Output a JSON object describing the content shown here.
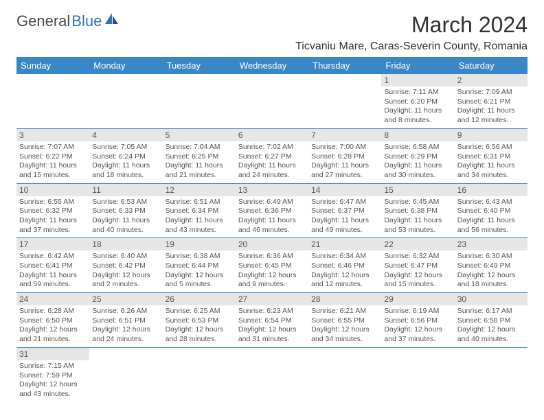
{
  "logo": {
    "part1": "General",
    "part2": "Blue"
  },
  "title": "March 2024",
  "location": "Ticvaniu Mare, Caras-Severin County, Romania",
  "colors": {
    "header_bg": "#3a87c7",
    "header_text": "#ffffff",
    "daynum_bg": "#e6e6e6",
    "text": "#555555",
    "border": "#3a87c7",
    "logo_blue": "#2e75b6"
  },
  "weekdays": [
    "Sunday",
    "Monday",
    "Tuesday",
    "Wednesday",
    "Thursday",
    "Friday",
    "Saturday"
  ],
  "weeks": [
    [
      null,
      null,
      null,
      null,
      null,
      {
        "n": "1",
        "sr": "Sunrise: 7:11 AM",
        "ss": "Sunset: 6:20 PM",
        "dl1": "Daylight: 11 hours",
        "dl2": "and 8 minutes."
      },
      {
        "n": "2",
        "sr": "Sunrise: 7:09 AM",
        "ss": "Sunset: 6:21 PM",
        "dl1": "Daylight: 11 hours",
        "dl2": "and 12 minutes."
      }
    ],
    [
      {
        "n": "3",
        "sr": "Sunrise: 7:07 AM",
        "ss": "Sunset: 6:22 PM",
        "dl1": "Daylight: 11 hours",
        "dl2": "and 15 minutes."
      },
      {
        "n": "4",
        "sr": "Sunrise: 7:05 AM",
        "ss": "Sunset: 6:24 PM",
        "dl1": "Daylight: 11 hours",
        "dl2": "and 18 minutes."
      },
      {
        "n": "5",
        "sr": "Sunrise: 7:04 AM",
        "ss": "Sunset: 6:25 PM",
        "dl1": "Daylight: 11 hours",
        "dl2": "and 21 minutes."
      },
      {
        "n": "6",
        "sr": "Sunrise: 7:02 AM",
        "ss": "Sunset: 6:27 PM",
        "dl1": "Daylight: 11 hours",
        "dl2": "and 24 minutes."
      },
      {
        "n": "7",
        "sr": "Sunrise: 7:00 AM",
        "ss": "Sunset: 6:28 PM",
        "dl1": "Daylight: 11 hours",
        "dl2": "and 27 minutes."
      },
      {
        "n": "8",
        "sr": "Sunrise: 6:58 AM",
        "ss": "Sunset: 6:29 PM",
        "dl1": "Daylight: 11 hours",
        "dl2": "and 30 minutes."
      },
      {
        "n": "9",
        "sr": "Sunrise: 6:56 AM",
        "ss": "Sunset: 6:31 PM",
        "dl1": "Daylight: 11 hours",
        "dl2": "and 34 minutes."
      }
    ],
    [
      {
        "n": "10",
        "sr": "Sunrise: 6:55 AM",
        "ss": "Sunset: 6:32 PM",
        "dl1": "Daylight: 11 hours",
        "dl2": "and 37 minutes."
      },
      {
        "n": "11",
        "sr": "Sunrise: 6:53 AM",
        "ss": "Sunset: 6:33 PM",
        "dl1": "Daylight: 11 hours",
        "dl2": "and 40 minutes."
      },
      {
        "n": "12",
        "sr": "Sunrise: 6:51 AM",
        "ss": "Sunset: 6:34 PM",
        "dl1": "Daylight: 11 hours",
        "dl2": "and 43 minutes."
      },
      {
        "n": "13",
        "sr": "Sunrise: 6:49 AM",
        "ss": "Sunset: 6:36 PM",
        "dl1": "Daylight: 11 hours",
        "dl2": "and 46 minutes."
      },
      {
        "n": "14",
        "sr": "Sunrise: 6:47 AM",
        "ss": "Sunset: 6:37 PM",
        "dl1": "Daylight: 11 hours",
        "dl2": "and 49 minutes."
      },
      {
        "n": "15",
        "sr": "Sunrise: 6:45 AM",
        "ss": "Sunset: 6:38 PM",
        "dl1": "Daylight: 11 hours",
        "dl2": "and 53 minutes."
      },
      {
        "n": "16",
        "sr": "Sunrise: 6:43 AM",
        "ss": "Sunset: 6:40 PM",
        "dl1": "Daylight: 11 hours",
        "dl2": "and 56 minutes."
      }
    ],
    [
      {
        "n": "17",
        "sr": "Sunrise: 6:42 AM",
        "ss": "Sunset: 6:41 PM",
        "dl1": "Daylight: 11 hours",
        "dl2": "and 59 minutes."
      },
      {
        "n": "18",
        "sr": "Sunrise: 6:40 AM",
        "ss": "Sunset: 6:42 PM",
        "dl1": "Daylight: 12 hours",
        "dl2": "and 2 minutes."
      },
      {
        "n": "19",
        "sr": "Sunrise: 6:38 AM",
        "ss": "Sunset: 6:44 PM",
        "dl1": "Daylight: 12 hours",
        "dl2": "and 5 minutes."
      },
      {
        "n": "20",
        "sr": "Sunrise: 6:36 AM",
        "ss": "Sunset: 6:45 PM",
        "dl1": "Daylight: 12 hours",
        "dl2": "and 9 minutes."
      },
      {
        "n": "21",
        "sr": "Sunrise: 6:34 AM",
        "ss": "Sunset: 6:46 PM",
        "dl1": "Daylight: 12 hours",
        "dl2": "and 12 minutes."
      },
      {
        "n": "22",
        "sr": "Sunrise: 6:32 AM",
        "ss": "Sunset: 6:47 PM",
        "dl1": "Daylight: 12 hours",
        "dl2": "and 15 minutes."
      },
      {
        "n": "23",
        "sr": "Sunrise: 6:30 AM",
        "ss": "Sunset: 6:49 PM",
        "dl1": "Daylight: 12 hours",
        "dl2": "and 18 minutes."
      }
    ],
    [
      {
        "n": "24",
        "sr": "Sunrise: 6:28 AM",
        "ss": "Sunset: 6:50 PM",
        "dl1": "Daylight: 12 hours",
        "dl2": "and 21 minutes."
      },
      {
        "n": "25",
        "sr": "Sunrise: 6:26 AM",
        "ss": "Sunset: 6:51 PM",
        "dl1": "Daylight: 12 hours",
        "dl2": "and 24 minutes."
      },
      {
        "n": "26",
        "sr": "Sunrise: 6:25 AM",
        "ss": "Sunset: 6:53 PM",
        "dl1": "Daylight: 12 hours",
        "dl2": "and 28 minutes."
      },
      {
        "n": "27",
        "sr": "Sunrise: 6:23 AM",
        "ss": "Sunset: 6:54 PM",
        "dl1": "Daylight: 12 hours",
        "dl2": "and 31 minutes."
      },
      {
        "n": "28",
        "sr": "Sunrise: 6:21 AM",
        "ss": "Sunset: 6:55 PM",
        "dl1": "Daylight: 12 hours",
        "dl2": "and 34 minutes."
      },
      {
        "n": "29",
        "sr": "Sunrise: 6:19 AM",
        "ss": "Sunset: 6:56 PM",
        "dl1": "Daylight: 12 hours",
        "dl2": "and 37 minutes."
      },
      {
        "n": "30",
        "sr": "Sunrise: 6:17 AM",
        "ss": "Sunset: 6:58 PM",
        "dl1": "Daylight: 12 hours",
        "dl2": "and 40 minutes."
      }
    ],
    [
      {
        "n": "31",
        "sr": "Sunrise: 7:15 AM",
        "ss": "Sunset: 7:59 PM",
        "dl1": "Daylight: 12 hours",
        "dl2": "and 43 minutes."
      },
      null,
      null,
      null,
      null,
      null,
      null
    ]
  ]
}
